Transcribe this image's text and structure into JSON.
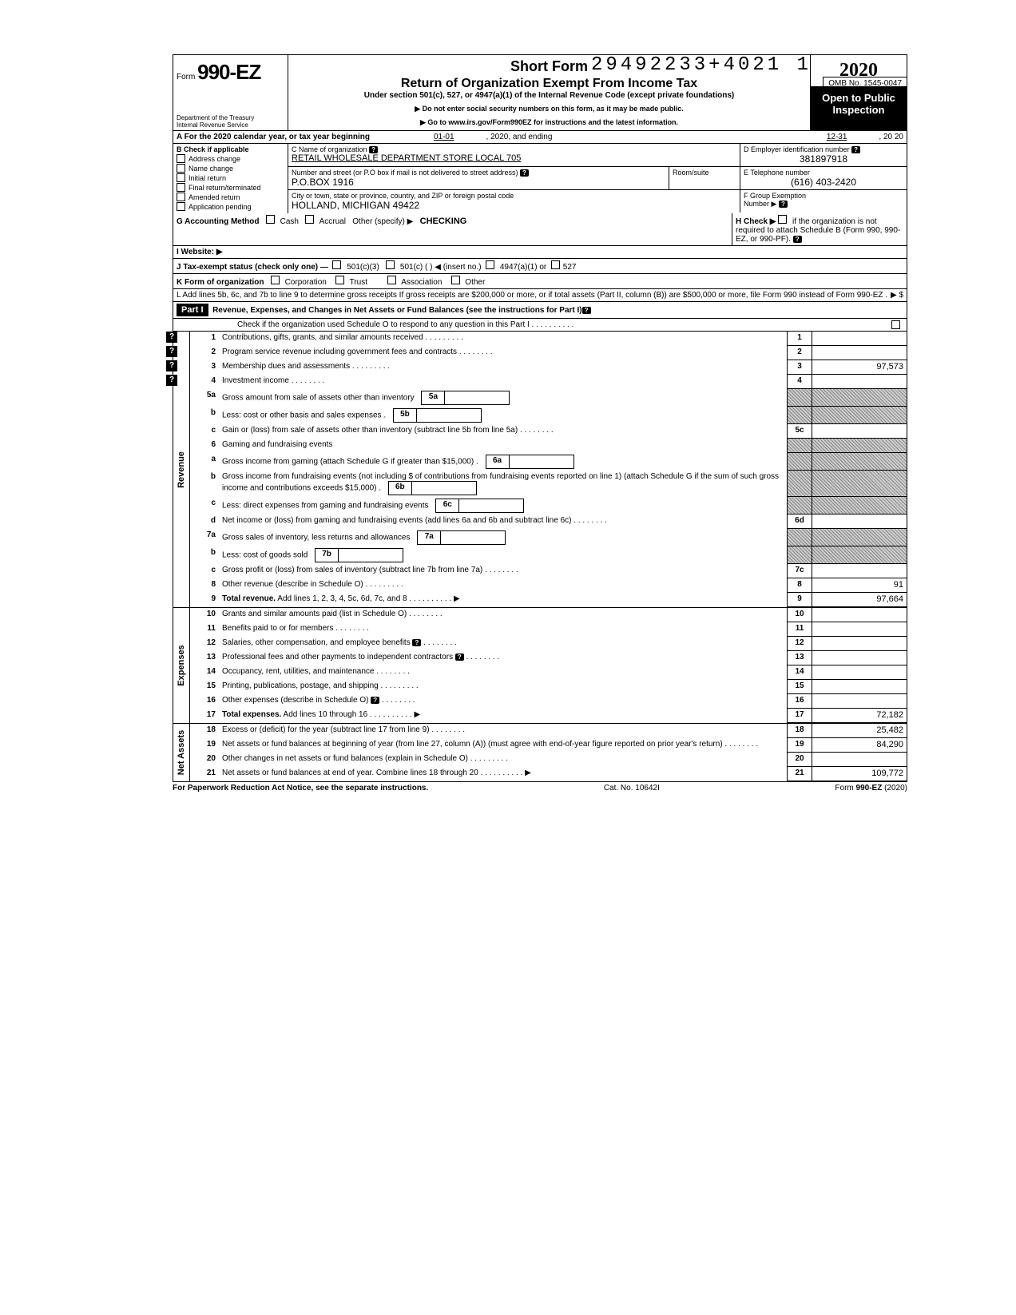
{
  "stamp": "29492233+4021  1",
  "omb": "OMB No. 1545-0047",
  "form": {
    "prefix": "Form",
    "num": "990-EZ"
  },
  "dept": "Department of the Treasury\nInternal Revenue Service",
  "title": {
    "short": "Short Form",
    "main": "Return of Organization Exempt From Income Tax",
    "under": "Under section 501(c), 527, or 4947(a)(1) of the Internal Revenue Code (except private foundations)",
    "ssn": "▶ Do not enter social security numbers on this form, as it may be made public.",
    "goto": "▶ Go to www.irs.gov/Form990EZ for instructions and the latest information."
  },
  "year": "2020",
  "open": "Open to Public Inspection",
  "A": {
    "label": "A  For the 2020 calendar year, or tax year beginning",
    "begin": "01-01",
    "mid": ", 2020, and ending",
    "end": "12-31",
    "yrend": ", 20   20"
  },
  "B": {
    "label": "B  Check if applicable",
    "items": [
      "Address change",
      "Name change",
      "Initial return",
      "Final return/terminated",
      "Amended return",
      "Application pending"
    ]
  },
  "C": {
    "label": "C  Name of organization",
    "value": "RETAIL WHOLESALE DEPARTMENT STORE LOCAL 705",
    "street_label": "Number and street (or P.O  box if mail is not delivered to street address)",
    "street": "P.O.BOX 1916",
    "room_label": "Room/suite",
    "city_label": "City or town, state or province, country, and ZIP or foreign postal code",
    "city": "HOLLAND, MICHIGAN 49422"
  },
  "D": {
    "label": "D Employer identification number",
    "value": "381897918"
  },
  "E": {
    "label": "E  Telephone number",
    "value": "(616) 403-2420"
  },
  "F": {
    "label": "F  Group Exemption",
    "sub": "Number ▶"
  },
  "G": {
    "label": "G  Accounting Method",
    "cash": "Cash",
    "accrual": "Accrual",
    "other": "Other (specify) ▶",
    "value": "CHECKING"
  },
  "H": {
    "label": "H  Check ▶",
    "text": "if the organization is not required to attach Schedule B (Form 990, 990-EZ, or 990-PF)."
  },
  "I": {
    "label": "I   Website: ▶"
  },
  "J": {
    "label": "J  Tax-exempt status (check only one) —",
    "opts": [
      "501(c)(3)",
      "501(c) (        ) ◀ (insert no.)",
      "4947(a)(1) or",
      "527"
    ]
  },
  "K": {
    "label": "K  Form of organization",
    "opts": [
      "Corporation",
      "Trust",
      "Association",
      "Other"
    ]
  },
  "L": {
    "text": "L  Add lines 5b, 6c, and 7b to line 9 to determine gross receipts  If gross receipts are $200,000 or more, or if total assets (Part II, column (B)) are $500,000 or more, file Form 990 instead of Form 990-EZ .",
    "arrow": "▶    $"
  },
  "part1": {
    "label": "Part I",
    "title": "Revenue, Expenses, and Changes in Net Assets or Fund Balances (see the instructions for Part I)",
    "check": "Check if the organization used Schedule O to respond to any question in this Part I  .  .  .  .  .  .  .  .  .  ."
  },
  "sections": {
    "revenue": "Revenue",
    "expenses": "Expenses",
    "netassets": "Net Assets"
  },
  "lines": {
    "l1": {
      "n": "1",
      "d": "Contributions, gifts, grants, and similar amounts received .",
      "box": "1",
      "val": ""
    },
    "l2": {
      "n": "2",
      "d": "Program service revenue including government fees and contracts",
      "box": "2",
      "val": ""
    },
    "l3": {
      "n": "3",
      "d": "Membership dues and assessments .",
      "box": "3",
      "val": "97,573"
    },
    "l4": {
      "n": "4",
      "d": "Investment income",
      "box": "4",
      "val": ""
    },
    "l5a": {
      "n": "5a",
      "d": "Gross amount from sale of assets other than inventory",
      "ibox": "5a"
    },
    "l5b": {
      "n": "b",
      "d": "Less: cost or other basis and sales expenses .",
      "ibox": "5b"
    },
    "l5c": {
      "n": "c",
      "d": "Gain or (loss) from sale of assets other than inventory (subtract line 5b from line 5a)",
      "box": "5c",
      "val": ""
    },
    "l6": {
      "n": "6",
      "d": "Gaming and fundraising events"
    },
    "l6a": {
      "n": "a",
      "d": "Gross income from gaming (attach Schedule G if greater than $15,000) .",
      "ibox": "6a"
    },
    "l6b": {
      "n": "b",
      "d": "Gross income from fundraising events (not including  $                    of contributions from fundraising events reported on line 1) (attach Schedule G if the sum of such gross income and contributions exceeds $15,000) .",
      "ibox": "6b"
    },
    "l6c": {
      "n": "c",
      "d": "Less: direct expenses from gaming and fundraising events",
      "ibox": "6c"
    },
    "l6d": {
      "n": "d",
      "d": "Net income or (loss) from gaming and fundraising events (add lines 6a and 6b and subtract line 6c)",
      "box": "6d",
      "val": ""
    },
    "l7a": {
      "n": "7a",
      "d": "Gross sales of inventory, less returns and allowances",
      "ibox": "7a"
    },
    "l7b": {
      "n": "b",
      "d": "Less: cost of goods sold",
      "ibox": "7b"
    },
    "l7c": {
      "n": "c",
      "d": "Gross profit or (loss) from sales of inventory (subtract line 7b from line 7a)",
      "box": "7c",
      "val": ""
    },
    "l8": {
      "n": "8",
      "d": "Other revenue (describe in Schedule O) .",
      "box": "8",
      "val": "91"
    },
    "l9": {
      "n": "9",
      "d": "Total revenue. Add lines 1, 2, 3, 4, 5c, 6d, 7c, and 8",
      "box": "9",
      "val": "97,664",
      "bold": true,
      "arrow": true
    },
    "l10": {
      "n": "10",
      "d": "Grants and similar amounts paid (list in Schedule O)",
      "box": "10",
      "val": ""
    },
    "l11": {
      "n": "11",
      "d": "Benefits paid to or for members",
      "box": "11",
      "val": ""
    },
    "l12": {
      "n": "12",
      "d": "Salaries, other compensation, and employee benefits",
      "box": "12",
      "val": "",
      "badge": true
    },
    "l13": {
      "n": "13",
      "d": "Professional fees and other payments to independent contractors",
      "box": "13",
      "val": "",
      "badge": true
    },
    "l14": {
      "n": "14",
      "d": "Occupancy, rent, utilities, and maintenance",
      "box": "14",
      "val": ""
    },
    "l15": {
      "n": "15",
      "d": "Printing, publications, postage, and shipping .",
      "box": "15",
      "val": ""
    },
    "l16": {
      "n": "16",
      "d": "Other expenses (describe in Schedule O)",
      "box": "16",
      "val": "",
      "badge": true
    },
    "l17": {
      "n": "17",
      "d": "Total expenses. Add lines 10 through 16",
      "box": "17",
      "val": "72,182",
      "bold": true,
      "arrow": true
    },
    "l18": {
      "n": "18",
      "d": "Excess or (deficit) for the year (subtract line 17 from line 9)",
      "box": "18",
      "val": "25,482"
    },
    "l19": {
      "n": "19",
      "d": "Net assets or fund balances at beginning of year (from line 27, column (A)) (must agree with end-of-year figure reported on prior year's return)",
      "box": "19",
      "val": "84,290"
    },
    "l20": {
      "n": "20",
      "d": "Other changes in net assets or fund balances (explain in Schedule O) .",
      "box": "20",
      "val": ""
    },
    "l21": {
      "n": "21",
      "d": "Net assets or fund balances at end of year. Combine lines 18 through 20",
      "box": "21",
      "val": "109,772",
      "arrow": true
    }
  },
  "footer": {
    "left": "For Paperwork Reduction Act Notice, see the separate instructions.",
    "mid": "Cat. No. 10642I",
    "right": "Form 990-EZ (2020)"
  }
}
